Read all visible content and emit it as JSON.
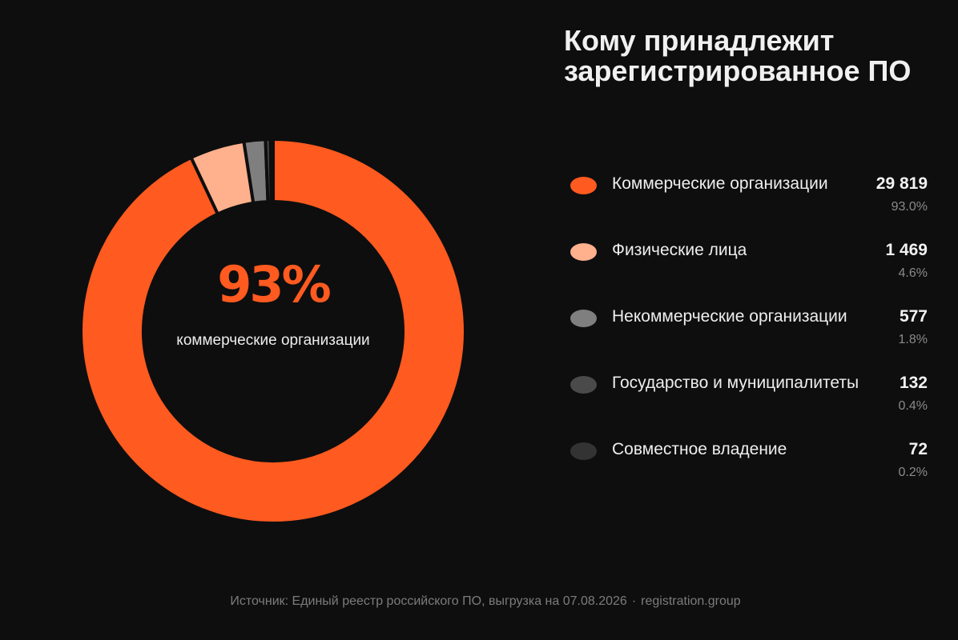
{
  "title": "Кому принадлежит зарегистрированное ПО",
  "center": {
    "value": "93%",
    "label": "коммерческие организации"
  },
  "legend": [
    {
      "label": "Коммерческие организации",
      "count": "29 819",
      "percent": "93.0%",
      "color": "#ff5a1f"
    },
    {
      "label": "Физические лица",
      "count": "1 469",
      "percent": "4.6%",
      "color": "#ffb08c"
    },
    {
      "label": "Некоммерческие организации",
      "count": "577",
      "percent": "1.8%",
      "color": "#7f7f7f"
    },
    {
      "label": "Государство и муниципалитеты",
      "count": "132",
      "percent": "0.4%",
      "color": "#4a4a4a"
    },
    {
      "label": "Совместное владение",
      "count": "72",
      "percent": "0.2%",
      "color": "#333333"
    }
  ],
  "footer": {
    "source": "Источник: Единый реестр российского ПО, выгрузка на 07.08.2026",
    "separator": "·",
    "site": "registration.group"
  },
  "chart_data": {
    "type": "pie",
    "donut": true,
    "title": "Кому принадлежит зарегистрированное ПО",
    "categories": [
      "Коммерческие организации",
      "Физические лица",
      "Некоммерческие организации",
      "Государство и муниципалитеты",
      "Совместное владение"
    ],
    "values": [
      29819,
      1469,
      577,
      132,
      72
    ],
    "percentages": [
      93.0,
      4.6,
      1.8,
      0.4,
      0.2
    ],
    "colors": [
      "#ff5a1f",
      "#ffb08c",
      "#7f7f7f",
      "#4a4a4a",
      "#333333"
    ],
    "start_angle": "12 o'clock",
    "direction": "clockwise",
    "legend_position": "right"
  }
}
